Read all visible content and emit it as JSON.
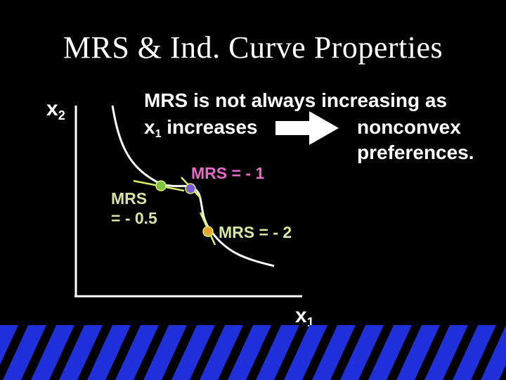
{
  "slide": {
    "title": "MRS & Ind. Curve Properties",
    "y_axis_label": "x",
    "y_axis_sub": "2",
    "x_axis_label": "x",
    "x_axis_sub": "1",
    "note_line1": "MRS is not always increasing as",
    "note_line2_var": "x",
    "note_line2_sub": "1",
    "note_line2_rest": " increases",
    "note_right_line1": "nonconvex",
    "note_right_line2": "preferences.",
    "mrs_left_line1": "MRS",
    "mrs_left_line2": "= - 0.5",
    "mrs_mid": "MRS = - 1",
    "mrs_right": "MRS = - 2"
  },
  "colors": {
    "background": "#000000",
    "text": "#ffffff",
    "curve": "#ffffff",
    "arrow": "#ffffff",
    "tangent": "#d9ee6a",
    "point_green": "#7dc242",
    "point_purple": "#7b5cd6",
    "point_orange": "#e8a435",
    "label_purple": "#e86ac8",
    "stripe_blue": "#1f2fd9"
  }
}
